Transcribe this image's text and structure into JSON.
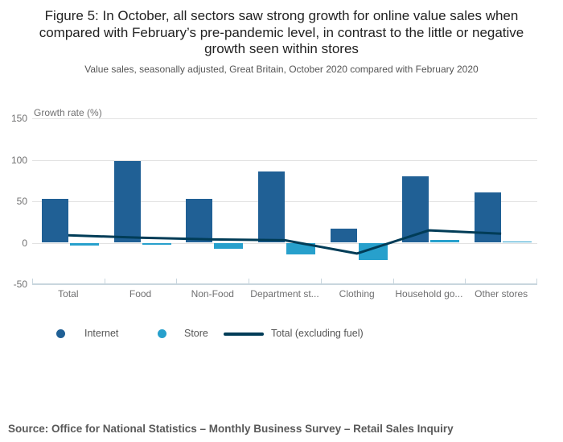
{
  "chart_data": {
    "type": "bar",
    "title": "Figure 5: In October, all sectors saw strong growth for online value sales when compared with February’s pre-pandemic level, in contrast to the little or negative growth seen within stores",
    "subtitle": "Value sales, seasonally adjusted, Great Britain, October 2020 compared with February 2020",
    "ylabel": "Growth rate (%)",
    "categories": [
      "Total",
      "Food",
      "Non-Food",
      "Department st...",
      "Clothing",
      "Household go...",
      "Other stores"
    ],
    "series": [
      {
        "name": "Internet",
        "type": "bar",
        "color": "#206095",
        "values": [
          53,
          99,
          53,
          86,
          17,
          80,
          61
        ]
      },
      {
        "name": "Store",
        "type": "bar",
        "color": "#27a0cc",
        "values": [
          -3,
          -2,
          -7,
          -14,
          -21,
          3,
          1
        ]
      },
      {
        "name": "Total (excluding fuel)",
        "type": "line",
        "color": "#003c57",
        "values": [
          9,
          6,
          4,
          3,
          -13,
          15,
          11
        ]
      }
    ],
    "yticks": [
      150,
      100,
      50,
      0,
      -50
    ],
    "ylim": [
      -50,
      150
    ],
    "grid": true,
    "legend_position": "bottom"
  },
  "source": "Source: Office for National Statistics – Monthly Business Survey – Retail Sales Inquiry",
  "colors": {
    "grid": "#e2e2e2",
    "axis": "#c9d6de",
    "muted_text": "#707071"
  }
}
